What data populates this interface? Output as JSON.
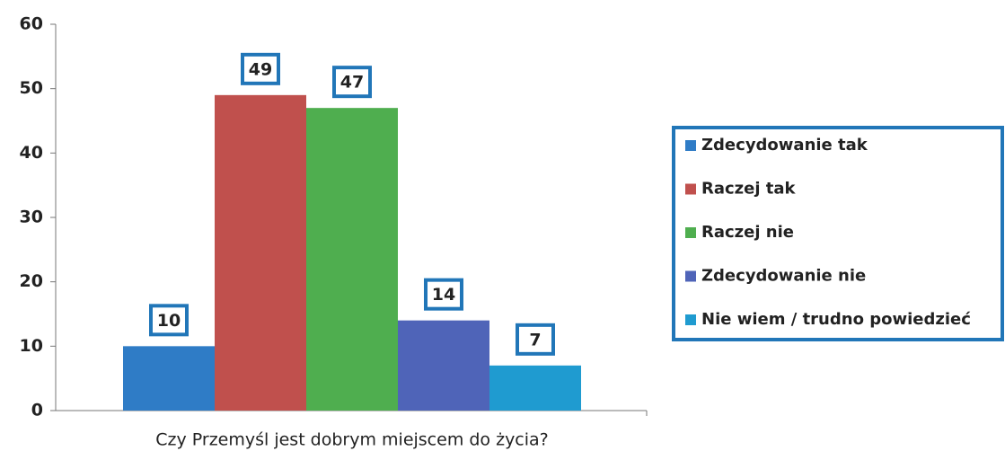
{
  "chart_data": {
    "type": "bar",
    "categories": [
      "Czy Przemyśl jest dobrym miejscem do życia?"
    ],
    "series": [
      {
        "name": "Zdecydowanie tak",
        "color": "#2f7cc6",
        "values": [
          10
        ]
      },
      {
        "name": "Raczej tak",
        "color": "#c0504d",
        "values": [
          49
        ]
      },
      {
        "name": "Raczej nie",
        "color": "#4fae4f",
        "values": [
          47
        ]
      },
      {
        "name": "Zdecydowanie nie",
        "color": "#4f64b8",
        "values": [
          14
        ]
      },
      {
        "name": "Nie wiem / trudno powiedzieć",
        "color": "#1f9bd0",
        "values": [
          7
        ]
      }
    ],
    "ylim": [
      0,
      60
    ],
    "yticks": [
      0,
      10,
      20,
      30,
      40,
      50,
      60
    ],
    "legend": "right"
  }
}
